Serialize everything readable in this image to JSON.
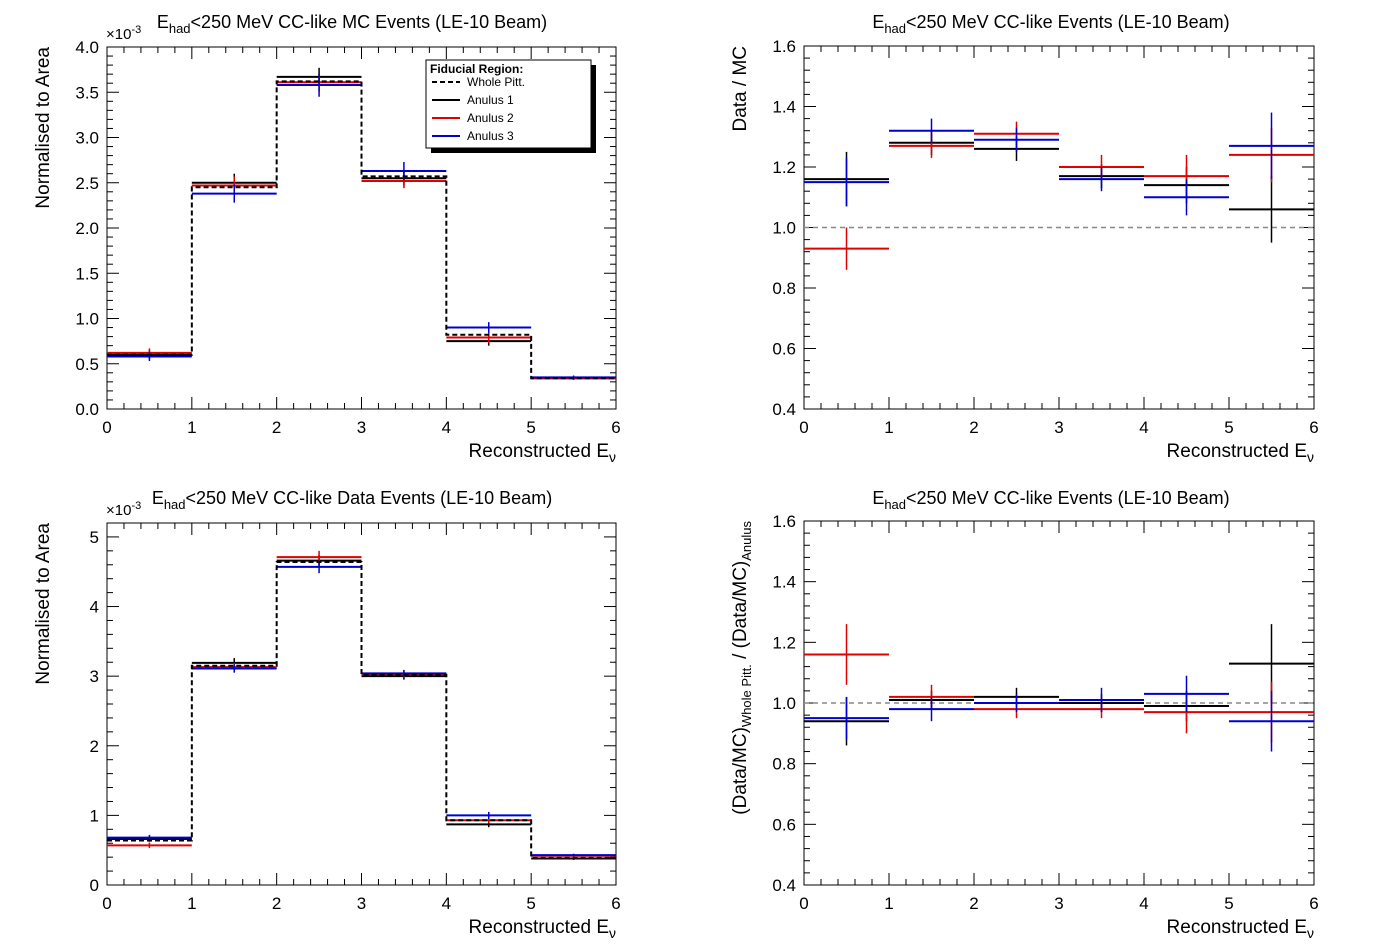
{
  "colors": {
    "whole": "#000000",
    "annulus1": "#000000",
    "annulus2": "#e00000",
    "annulus3": "#0000d0",
    "unity": "#888888"
  },
  "legend": {
    "title": "Fiducial Region:",
    "entries": [
      "Whole Pitt.",
      "Anulus 1",
      "Anulus 2",
      "Anulus 3"
    ]
  },
  "chart_data": [
    {
      "type": "histogram",
      "title_prefix": "E",
      "title_sub": "had",
      "title_rest": "<250 MeV CC-like MC Events (LE-10 Beam)",
      "xlabel": "Reconstructed E",
      "xlabel_sub": "ν",
      "ylabel": "Normalised to Area",
      "exponent_label": "×10",
      "exponent_power": "-3",
      "xlim": [
        0,
        6
      ],
      "ylim": [
        0,
        4.0
      ],
      "xticks": [
        "0",
        "1",
        "2",
        "3",
        "4",
        "5",
        "6"
      ],
      "yticks": [
        "0.0",
        "0.5",
        "1.0",
        "1.5",
        "2.0",
        "2.5",
        "3.0",
        "3.5",
        "4.0"
      ],
      "ytick_values": [
        0,
        0.5,
        1.0,
        1.5,
        2.0,
        2.5,
        3.0,
        3.5,
        4.0
      ],
      "bins": [
        0,
        1,
        2,
        3,
        4,
        5,
        6
      ],
      "series": [
        {
          "name": "Whole Pitt.",
          "style": "dashed",
          "values": [
            0.6,
            2.45,
            3.62,
            2.57,
            0.82,
            0.34
          ],
          "errors": [
            0,
            0,
            0,
            0,
            0,
            0
          ]
        },
        {
          "name": "Anulus 1",
          "style": "solid",
          "values": [
            0.6,
            2.5,
            3.67,
            2.55,
            0.75,
            0.34
          ],
          "errors": [
            0.05,
            0.1,
            0.1,
            0.08,
            0.05,
            0.02
          ]
        },
        {
          "name": "Anulus 2",
          "style": "solid",
          "values": [
            0.62,
            2.47,
            3.61,
            2.52,
            0.79,
            0.34
          ],
          "errors": [
            0.05,
            0.1,
            0.1,
            0.08,
            0.06,
            0.02
          ]
        },
        {
          "name": "Anulus 3",
          "style": "solid",
          "values": [
            0.58,
            2.38,
            3.58,
            2.63,
            0.9,
            0.35
          ],
          "errors": [
            0.05,
            0.1,
            0.13,
            0.1,
            0.06,
            0.02
          ]
        }
      ]
    },
    {
      "type": "scatter",
      "title_prefix": "E",
      "title_sub": "had",
      "title_rest": "<250 MeV CC-like Events (LE-10 Beam)",
      "xlabel": "Reconstructed E",
      "xlabel_sub": "ν",
      "ylabel": "Data / MC",
      "xlim": [
        0,
        6
      ],
      "ylim": [
        0.4,
        1.6
      ],
      "xticks": [
        "0",
        "1",
        "2",
        "3",
        "4",
        "5",
        "6"
      ],
      "yticks": [
        "0.4",
        "0.6",
        "0.8",
        "1.0",
        "1.2",
        "1.4",
        "1.6"
      ],
      "ytick_values": [
        0.4,
        0.6,
        0.8,
        1.0,
        1.2,
        1.4,
        1.6
      ],
      "unity_line": 1.0,
      "bins": [
        0,
        1,
        2,
        3,
        4,
        5,
        6
      ],
      "series": [
        {
          "name": "Anulus 1",
          "values": [
            1.16,
            1.28,
            1.26,
            1.17,
            1.14,
            1.06
          ],
          "errors": [
            0.09,
            0.04,
            0.04,
            0.04,
            0.06,
            0.11
          ]
        },
        {
          "name": "Anulus 2",
          "values": [
            0.93,
            1.27,
            1.31,
            1.2,
            1.17,
            1.24
          ],
          "errors": [
            0.07,
            0.04,
            0.04,
            0.04,
            0.07,
            0.09
          ]
        },
        {
          "name": "Anulus 3",
          "values": [
            1.15,
            1.32,
            1.29,
            1.16,
            1.1,
            1.27
          ],
          "errors": [
            0.08,
            0.04,
            0.04,
            0.04,
            0.06,
            0.11
          ]
        }
      ]
    },
    {
      "type": "histogram",
      "title_prefix": "E",
      "title_sub": "had",
      "title_rest": "<250 MeV CC-like Data Events (LE-10 Beam)",
      "xlabel": "Reconstructed E",
      "xlabel_sub": "ν",
      "ylabel": "Normalised to Area",
      "exponent_label": "×10",
      "exponent_power": "-3",
      "xlim": [
        0,
        6
      ],
      "ylim": [
        0,
        5.2
      ],
      "xticks": [
        "0",
        "1",
        "2",
        "3",
        "4",
        "5",
        "6"
      ],
      "yticks": [
        "0",
        "1",
        "2",
        "3",
        "4",
        "5"
      ],
      "ytick_values": [
        0,
        1,
        2,
        3,
        4,
        5
      ],
      "bins": [
        0,
        1,
        2,
        3,
        4,
        5,
        6
      ],
      "series": [
        {
          "name": "Whole Pitt.",
          "style": "dashed",
          "values": [
            0.64,
            3.15,
            4.64,
            3.02,
            0.93,
            0.39
          ],
          "errors": [
            0,
            0,
            0,
            0,
            0,
            0
          ]
        },
        {
          "name": "Anulus 1",
          "style": "solid",
          "values": [
            0.66,
            3.19,
            4.66,
            3.0,
            0.87,
            0.38
          ],
          "errors": [
            0.04,
            0.07,
            0.08,
            0.05,
            0.04,
            0.02
          ]
        },
        {
          "name": "Anulus 2",
          "style": "solid",
          "values": [
            0.57,
            3.13,
            4.71,
            3.03,
            0.93,
            0.42
          ],
          "errors": [
            0.04,
            0.06,
            0.09,
            0.05,
            0.04,
            0.02
          ]
        },
        {
          "name": "Anulus 3",
          "style": "solid",
          "values": [
            0.68,
            3.11,
            4.57,
            3.04,
            1.0,
            0.43
          ],
          "errors": [
            0.04,
            0.06,
            0.09,
            0.05,
            0.05,
            0.02
          ]
        }
      ]
    },
    {
      "type": "scatter",
      "title_prefix": "E",
      "title_sub": "had",
      "title_rest": "<250 MeV CC-like Events (LE-10 Beam)",
      "xlabel": "Reconstructed E",
      "xlabel_sub": "ν",
      "ylabel": "(Data/MC)",
      "ylabel_sub1": "Whole Pitt.",
      "ylabel_mid": " / (Data/MC)",
      "ylabel_sub2": "Anulus",
      "xlim": [
        0,
        6
      ],
      "ylim": [
        0.4,
        1.6
      ],
      "xticks": [
        "0",
        "1",
        "2",
        "3",
        "4",
        "5",
        "6"
      ],
      "yticks": [
        "0.4",
        "0.6",
        "0.8",
        "1.0",
        "1.2",
        "1.4",
        "1.6"
      ],
      "ytick_values": [
        0.4,
        0.6,
        0.8,
        1.0,
        1.2,
        1.4,
        1.6
      ],
      "unity_line": 1.0,
      "bins": [
        0,
        1,
        2,
        3,
        4,
        5,
        6
      ],
      "series": [
        {
          "name": "Anulus 1",
          "values": [
            0.94,
            1.01,
            1.02,
            1.0,
            0.99,
            1.13
          ],
          "errors": [
            0.08,
            0.03,
            0.03,
            0.03,
            0.05,
            0.13
          ]
        },
        {
          "name": "Anulus 2",
          "values": [
            1.16,
            1.02,
            0.98,
            0.98,
            0.97,
            0.97
          ],
          "errors": [
            0.1,
            0.04,
            0.03,
            0.03,
            0.07,
            0.1
          ]
        },
        {
          "name": "Anulus 3",
          "values": [
            0.95,
            0.98,
            1.0,
            1.01,
            1.03,
            0.94
          ],
          "errors": [
            0.07,
            0.04,
            0.03,
            0.04,
            0.06,
            0.1
          ]
        }
      ]
    }
  ]
}
